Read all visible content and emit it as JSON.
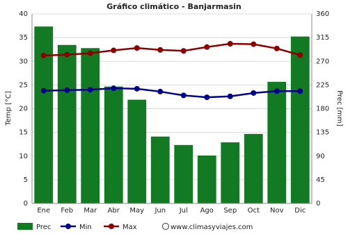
{
  "chart_data": {
    "type": "bar",
    "title": "Gráfico climático - Banjarmasin",
    "categories": [
      "Ene",
      "Feb",
      "Mar",
      "Abr",
      "May",
      "Jun",
      "Jul",
      "Ago",
      "Sep",
      "Oct",
      "Nov",
      "Dic"
    ],
    "series": [
      {
        "name": "Prec",
        "type": "bar",
        "axis": "y2",
        "color": "#127a22",
        "values": [
          336,
          301,
          295,
          222,
          197,
          127,
          111,
          91,
          116,
          132,
          231,
          317
        ]
      },
      {
        "name": "Min",
        "type": "line",
        "color": "#00008b",
        "values": [
          23.8,
          23.9,
          24.0,
          24.3,
          24.2,
          23.6,
          22.8,
          22.4,
          22.6,
          23.3,
          23.7,
          23.7
        ]
      },
      {
        "name": "Max",
        "type": "line",
        "color": "#8b0000",
        "values": [
          31.2,
          31.4,
          31.7,
          32.3,
          32.8,
          32.4,
          32.2,
          33.0,
          33.7,
          33.6,
          32.7,
          31.3
        ]
      }
    ],
    "ylabel": "Temp [°C]",
    "y2label": "Prec [mm]",
    "ylim": [
      0,
      40
    ],
    "yticks": [
      0,
      5,
      10,
      15,
      20,
      25,
      30,
      35,
      40
    ],
    "y2lim": [
      0,
      360
    ],
    "y2ticks": [
      0,
      45,
      90,
      135,
      180,
      225,
      270,
      315,
      360
    ],
    "grid": true,
    "legend": "bottom",
    "watermark": "www.climasyviajes.com"
  }
}
